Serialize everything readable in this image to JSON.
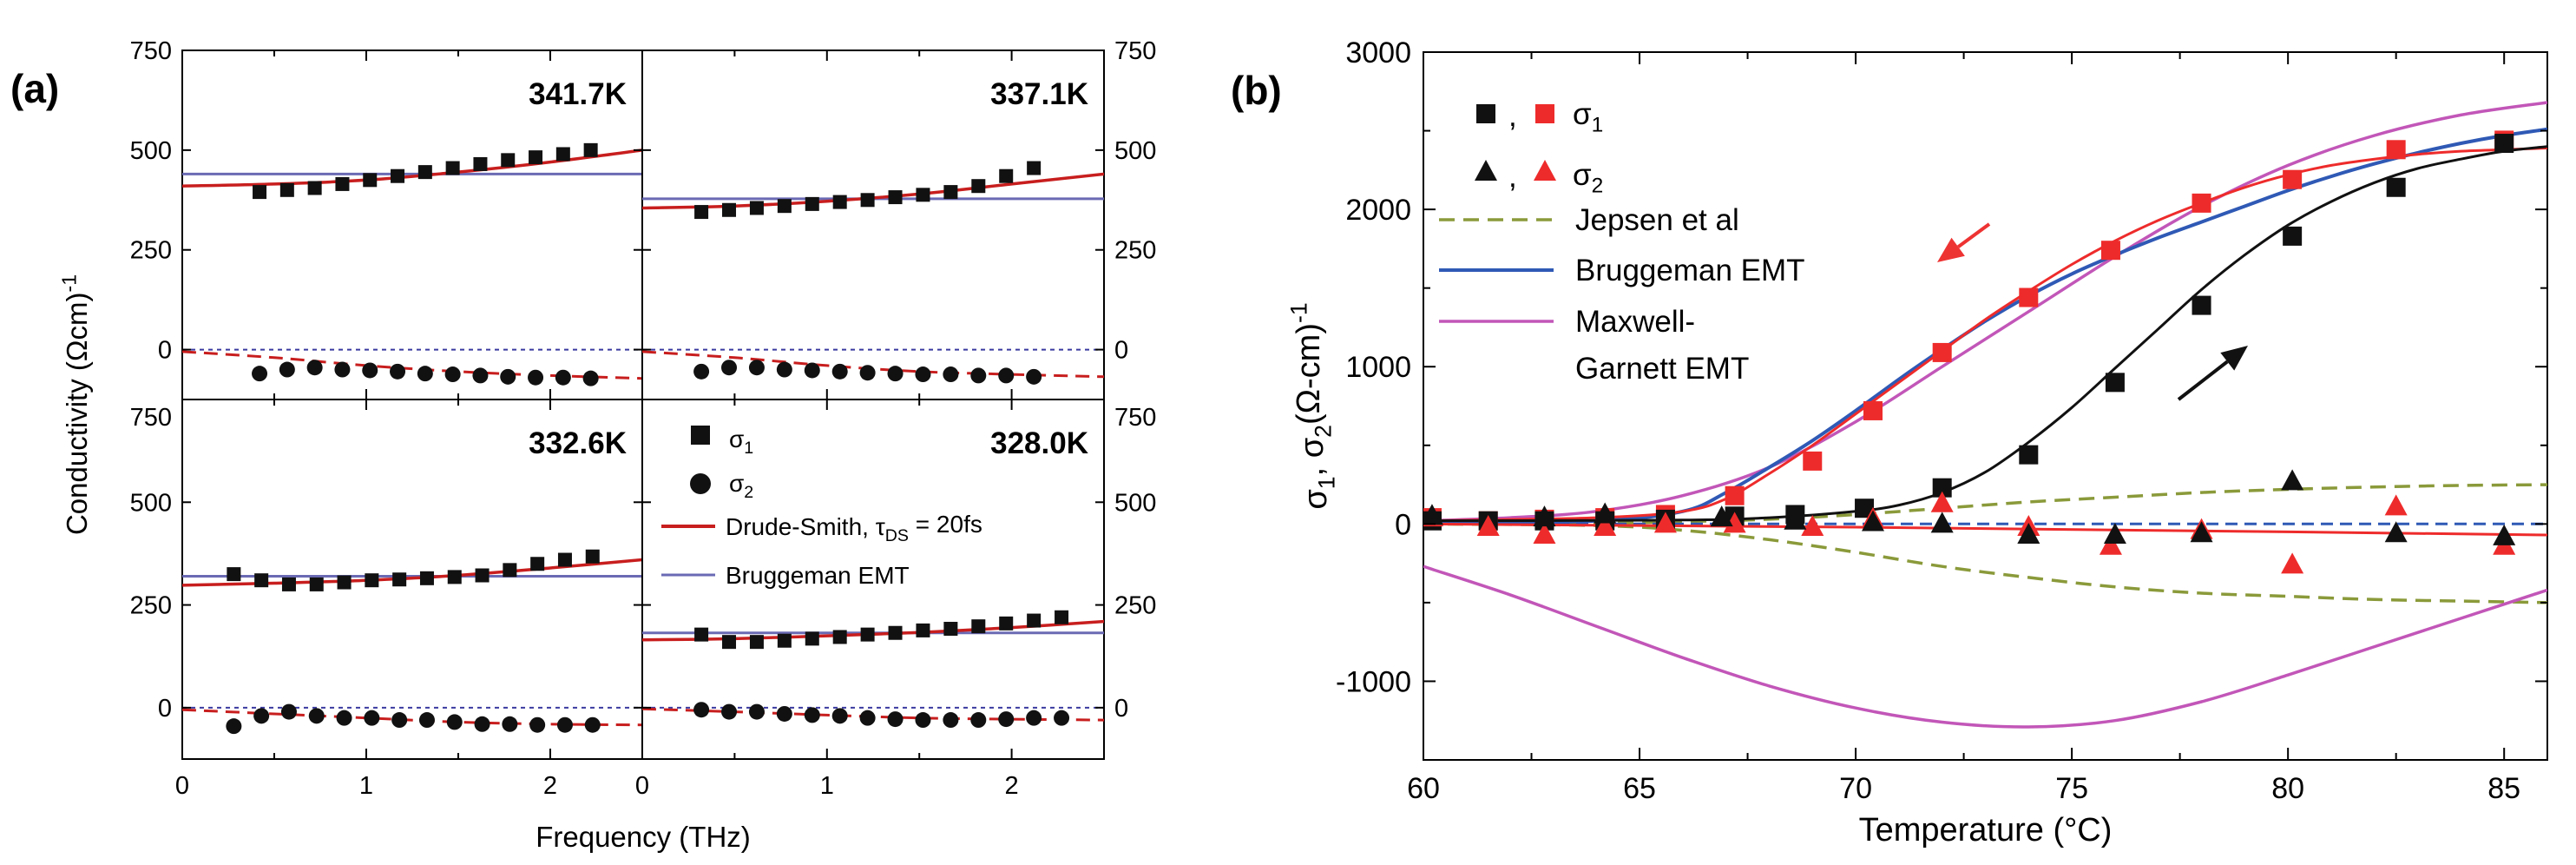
{
  "chart_data": [
    {
      "id": "panel-a",
      "type": "scatter",
      "panel_label": "(a)",
      "xlabel": "Frequency (THz)",
      "ylabel": "Conductivity (Ωcm)⁻¹",
      "ylabel_main": "Conductivity (Ωcm)",
      "ylabel_sup": "-1",
      "xlim": [
        0,
        2.5
      ],
      "ylim": [
        -125,
        750
      ],
      "x_ticks": [
        "0",
        "1",
        "2"
      ],
      "y_ticks": [
        "0",
        "250",
        "500",
        "750"
      ],
      "legend": {
        "sigma1": "σ",
        "sigma1_sub": "1",
        "sigma2": "σ",
        "sigma2_sub": "2",
        "drude_prefix": "Drude-Smith, τ",
        "drude_sub": "DS",
        "drude_suffix": " = 20fs",
        "bruggeman": "Bruggeman EMT"
      },
      "colors": {
        "drude": "#c81e1e",
        "bruggeman": "#6a6ab4",
        "markers": "#111111",
        "zero_line": "#3a3aa0"
      },
      "subplots": [
        {
          "temp": "341.7K",
          "x": [
            0.42,
            0.57,
            0.72,
            0.87,
            1.02,
            1.17,
            1.32,
            1.47,
            1.62,
            1.77,
            1.92,
            2.07,
            2.22
          ],
          "sigma1": [
            395,
            400,
            405,
            415,
            425,
            435,
            445,
            455,
            465,
            475,
            482,
            490,
            500
          ],
          "sigma2": [
            -60,
            -50,
            -45,
            -50,
            -52,
            -55,
            -60,
            -62,
            -65,
            -68,
            -70,
            -70,
            -72
          ],
          "drude_s1": [
            [
              0,
              410
            ],
            [
              0.5,
              415
            ],
            [
              1.0,
              425
            ],
            [
              1.5,
              445
            ],
            [
              2.0,
              470
            ],
            [
              2.5,
              500
            ]
          ],
          "drude_s2": [
            [
              0,
              -5
            ],
            [
              0.5,
              -20
            ],
            [
              1.0,
              -40
            ],
            [
              1.5,
              -55
            ],
            [
              2.0,
              -65
            ],
            [
              2.5,
              -72
            ]
          ],
          "bruggeman_s1": 440,
          "bruggeman_s2": 0
        },
        {
          "temp": "337.1K",
          "x": [
            0.32,
            0.47,
            0.62,
            0.77,
            0.92,
            1.07,
            1.22,
            1.37,
            1.52,
            1.67,
            1.82,
            1.97,
            2.12
          ],
          "sigma1": [
            345,
            350,
            355,
            360,
            365,
            370,
            375,
            382,
            388,
            395,
            410,
            435,
            455
          ],
          "sigma2": [
            -55,
            -45,
            -45,
            -50,
            -52,
            -55,
            -58,
            -60,
            -62,
            -62,
            -65,
            -65,
            -68
          ],
          "drude_s1": [
            [
              0,
              355
            ],
            [
              0.5,
              360
            ],
            [
              1.0,
              372
            ],
            [
              1.5,
              390
            ],
            [
              2.0,
              415
            ],
            [
              2.5,
              440
            ]
          ],
          "drude_s2": [
            [
              0,
              -5
            ],
            [
              0.5,
              -20
            ],
            [
              1.0,
              -40
            ],
            [
              1.5,
              -55
            ],
            [
              2.0,
              -62
            ],
            [
              2.5,
              -68
            ]
          ],
          "bruggeman_s1": 378,
          "bruggeman_s2": 0
        },
        {
          "temp": "332.6K",
          "x": [
            0.28,
            0.43,
            0.58,
            0.73,
            0.88,
            1.03,
            1.18,
            1.33,
            1.48,
            1.63,
            1.78,
            1.93,
            2.08,
            2.23
          ],
          "sigma1": [
            325,
            310,
            300,
            300,
            305,
            310,
            312,
            315,
            318,
            322,
            335,
            350,
            360,
            368
          ],
          "sigma2": [
            -45,
            -20,
            -10,
            -20,
            -25,
            -25,
            -30,
            -30,
            -35,
            -40,
            -40,
            -42,
            -42,
            -42
          ],
          "drude_s1": [
            [
              0,
              298
            ],
            [
              0.5,
              303
            ],
            [
              1.0,
              310
            ],
            [
              1.5,
              322
            ],
            [
              2.0,
              340
            ],
            [
              2.5,
              360
            ]
          ],
          "drude_s2": [
            [
              0,
              -5
            ],
            [
              0.5,
              -15
            ],
            [
              1.0,
              -25
            ],
            [
              1.5,
              -35
            ],
            [
              2.0,
              -40
            ],
            [
              2.5,
              -42
            ]
          ],
          "bruggeman_s1": 320,
          "bruggeman_s2": 0
        },
        {
          "temp": "328.0K",
          "x": [
            0.32,
            0.47,
            0.62,
            0.77,
            0.92,
            1.07,
            1.22,
            1.37,
            1.52,
            1.67,
            1.82,
            1.97,
            2.12,
            2.27
          ],
          "sigma1": [
            178,
            160,
            160,
            163,
            168,
            172,
            178,
            182,
            188,
            192,
            198,
            205,
            212,
            220
          ],
          "sigma2": [
            -5,
            -10,
            -10,
            -15,
            -18,
            -20,
            -25,
            -28,
            -30,
            -30,
            -30,
            -28,
            -25,
            -25
          ],
          "drude_s1": [
            [
              0,
              165
            ],
            [
              0.5,
              168
            ],
            [
              1.0,
              175
            ],
            [
              1.5,
              183
            ],
            [
              2.0,
              195
            ],
            [
              2.5,
              210
            ]
          ],
          "drude_s2": [
            [
              0,
              -3
            ],
            [
              0.5,
              -10
            ],
            [
              1.0,
              -18
            ],
            [
              1.5,
              -25
            ],
            [
              2.0,
              -28
            ],
            [
              2.5,
              -30
            ]
          ],
          "bruggeman_s1": 182,
          "bruggeman_s2": 0
        }
      ]
    },
    {
      "id": "panel-b",
      "type": "line",
      "panel_label": "(b)",
      "xlabel": "Temperature (°C)",
      "ylabel_parts": [
        "σ",
        "1",
        ", σ",
        "2",
        "(Ω-cm)",
        "-1"
      ],
      "xlim": [
        60,
        86
      ],
      "ylim": [
        -1500,
        3000
      ],
      "x_ticks": [
        "60",
        "65",
        "70",
        "75",
        "80",
        "85"
      ],
      "y_ticks": [
        "-1000",
        "0",
        "1000",
        "2000",
        "3000"
      ],
      "legend": {
        "comma": ",",
        "sigma1": "σ",
        "sigma1_sub": "1",
        "sigma2": "σ",
        "sigma2_sub": "2",
        "jepsen": "Jepsen et al",
        "bruggeman": "Bruggeman EMT",
        "maxwell_line1": "Maxwell-",
        "maxwell_line2": "Garnett EMT"
      },
      "colors": {
        "heating": "#111111",
        "cooling": "#ee2b2b",
        "jepsen": "#8a9a3a",
        "bruggeman": "#2f59b5",
        "maxwell": "#c256b8",
        "cooling_arrow": "#ee3333",
        "heating_arrow": "#111111"
      },
      "sigma1_heating": {
        "x": [
          60.2,
          61.5,
          62.8,
          64.2,
          65.6,
          67.2,
          68.6,
          70.2,
          72.0,
          74.0,
          76.0,
          78.0,
          80.1,
          82.5,
          85.0
        ],
        "y": [
          20,
          20,
          20,
          20,
          30,
          50,
          60,
          100,
          230,
          440,
          900,
          1390,
          1830,
          2140,
          2420
        ]
      },
      "sigma1_cooling": {
        "x": [
          60.2,
          61.5,
          62.8,
          64.2,
          65.6,
          67.2,
          69.0,
          70.4,
          72.0,
          74.0,
          75.9,
          78.0,
          80.1,
          82.5,
          85.0
        ],
        "y": [
          40,
          20,
          30,
          40,
          60,
          180,
          400,
          720,
          1090,
          1440,
          1740,
          2040,
          2190,
          2380,
          2440
        ]
      },
      "sigma2_heating": {
        "x": [
          60.2,
          62.8,
          64.2,
          66.9,
          68.6,
          70.4,
          72.0,
          74.0,
          76.0,
          78.0,
          80.1,
          82.5,
          85.0
        ],
        "y": [
          50,
          40,
          60,
          40,
          20,
          10,
          0,
          -70,
          -70,
          -60,
          270,
          -60,
          -80
        ]
      },
      "sigma2_cooling": {
        "x": [
          60.2,
          61.5,
          62.8,
          64.2,
          65.6,
          67.2,
          69.0,
          70.4,
          72.0,
          74.0,
          75.9,
          78.0,
          80.1,
          82.5,
          85.0
        ],
        "y": [
          40,
          -20,
          -70,
          -20,
          0,
          0,
          -20,
          30,
          130,
          -20,
          -140,
          -40,
          -260,
          110,
          -140
        ]
      },
      "heating_fit": [
        [
          60,
          20
        ],
        [
          66,
          25
        ],
        [
          68,
          40
        ],
        [
          70,
          80
        ],
        [
          71,
          120
        ],
        [
          72,
          200
        ],
        [
          73,
          330
        ],
        [
          74,
          520
        ],
        [
          75,
          740
        ],
        [
          76,
          990
        ],
        [
          77,
          1240
        ],
        [
          78,
          1490
        ],
        [
          79,
          1710
        ],
        [
          80,
          1900
        ],
        [
          81,
          2050
        ],
        [
          82,
          2170
        ],
        [
          83,
          2260
        ],
        [
          84,
          2320
        ],
        [
          85,
          2370
        ],
        [
          86,
          2400
        ]
      ],
      "cooling_fit": [
        [
          60,
          20
        ],
        [
          64,
          40
        ],
        [
          66,
          80
        ],
        [
          67,
          160
        ],
        [
          68,
          320
        ],
        [
          69,
          500
        ],
        [
          70,
          700
        ],
        [
          71,
          900
        ],
        [
          72,
          1100
        ],
        [
          73,
          1300
        ],
        [
          74,
          1480
        ],
        [
          75,
          1650
        ],
        [
          76,
          1800
        ],
        [
          77,
          1930
        ],
        [
          78,
          2040
        ],
        [
          79,
          2140
        ],
        [
          80,
          2220
        ],
        [
          81,
          2280
        ],
        [
          82,
          2320
        ],
        [
          83,
          2350
        ],
        [
          84,
          2370
        ],
        [
          85,
          2380
        ],
        [
          86,
          2390
        ]
      ],
      "sigma2_fit": [
        [
          60,
          0
        ],
        [
          70,
          -20
        ],
        [
          80,
          -50
        ],
        [
          86,
          -70
        ]
      ],
      "jepsen_upper": [
        [
          60,
          0
        ],
        [
          64,
          5
        ],
        [
          66,
          15
        ],
        [
          68,
          30
        ],
        [
          70,
          60
        ],
        [
          72,
          100
        ],
        [
          74,
          140
        ],
        [
          76,
          170
        ],
        [
          78,
          200
        ],
        [
          80,
          220
        ],
        [
          82,
          235
        ],
        [
          84,
          245
        ],
        [
          86,
          250
        ]
      ],
      "jepsen_lower": [
        [
          60,
          0
        ],
        [
          64,
          -10
        ],
        [
          66,
          -40
        ],
        [
          68,
          -100
        ],
        [
          70,
          -180
        ],
        [
          72,
          -270
        ],
        [
          74,
          -340
        ],
        [
          76,
          -400
        ],
        [
          78,
          -440
        ],
        [
          80,
          -460
        ],
        [
          82,
          -480
        ],
        [
          84,
          -490
        ],
        [
          86,
          -500
        ]
      ],
      "bruggeman_fit": [
        [
          60,
          0
        ],
        [
          64,
          20
        ],
        [
          66,
          80
        ],
        [
          67,
          200
        ],
        [
          68,
          360
        ],
        [
          69,
          530
        ],
        [
          70,
          720
        ],
        [
          71,
          920
        ],
        [
          72,
          1110
        ],
        [
          73,
          1290
        ],
        [
          74,
          1450
        ],
        [
          75,
          1590
        ],
        [
          76,
          1710
        ],
        [
          77,
          1820
        ],
        [
          78,
          1920
        ],
        [
          79,
          2020
        ],
        [
          80,
          2120
        ],
        [
          81,
          2210
        ],
        [
          82,
          2290
        ],
        [
          83,
          2360
        ],
        [
          84,
          2420
        ],
        [
          85,
          2470
        ],
        [
          86,
          2510
        ]
      ],
      "bruggeman_zero": [
        [
          60,
          0
        ],
        [
          86,
          0
        ]
      ],
      "maxwell_upper": [
        [
          60,
          20
        ],
        [
          62,
          40
        ],
        [
          64,
          80
        ],
        [
          66,
          180
        ],
        [
          68,
          360
        ],
        [
          70,
          650
        ],
        [
          72,
          1000
        ],
        [
          74,
          1350
        ],
        [
          76,
          1700
        ],
        [
          78,
          2020
        ],
        [
          80,
          2280
        ],
        [
          82,
          2470
        ],
        [
          84,
          2600
        ],
        [
          86,
          2680
        ]
      ],
      "maxwell_lower": [
        [
          60,
          -270
        ],
        [
          62,
          -450
        ],
        [
          64,
          -650
        ],
        [
          66,
          -850
        ],
        [
          68,
          -1030
        ],
        [
          70,
          -1170
        ],
        [
          72,
          -1260
        ],
        [
          74,
          -1290
        ],
        [
          76,
          -1250
        ],
        [
          78,
          -1130
        ],
        [
          80,
          -960
        ],
        [
          82,
          -780
        ],
        [
          84,
          -600
        ],
        [
          86,
          -420
        ]
      ]
    }
  ]
}
